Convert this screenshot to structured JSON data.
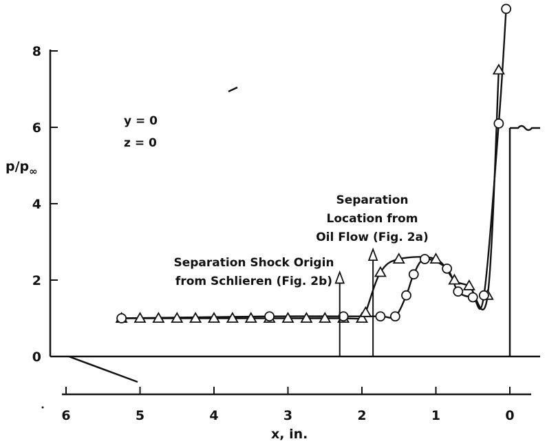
{
  "chart_data": {
    "type": "line",
    "xlabel": "x, in.",
    "ylabel": "p/p",
    "ylabel_sub": "∞",
    "xlim": [
      6,
      0
    ],
    "ylim": [
      0,
      9
    ],
    "x_ticks": [
      6,
      5,
      4,
      3,
      2,
      1,
      0
    ],
    "y_ticks": [
      0,
      2,
      4,
      6,
      8
    ],
    "x_tick_labels": [
      "6",
      "5",
      "4",
      "3",
      "2",
      "1",
      "0"
    ],
    "y_tick_labels": [
      "0",
      "2",
      "4",
      "6",
      "8"
    ],
    "conditions": [
      "y = 0",
      "z = 0"
    ],
    "series": [
      {
        "marker": "triangle",
        "points": [
          [
            5.25,
            1.0
          ],
          [
            5.0,
            1.0
          ],
          [
            4.75,
            1.0
          ],
          [
            4.5,
            1.0
          ],
          [
            4.25,
            1.0
          ],
          [
            4.0,
            1.0
          ],
          [
            3.75,
            1.0
          ],
          [
            3.5,
            1.0
          ],
          [
            3.25,
            1.0
          ],
          [
            3.0,
            1.0
          ],
          [
            2.75,
            1.0
          ],
          [
            2.5,
            1.0
          ],
          [
            2.25,
            1.0
          ],
          [
            2.0,
            1.0
          ],
          [
            1.95,
            1.15
          ],
          [
            1.75,
            2.2
          ],
          [
            1.5,
            2.55
          ],
          [
            1.0,
            2.55
          ],
          [
            0.75,
            2.0
          ],
          [
            0.55,
            1.85
          ],
          [
            0.3,
            1.6
          ],
          [
            0.15,
            7.5
          ]
        ]
      },
      {
        "marker": "circle",
        "points": [
          [
            5.25,
            1.0
          ],
          [
            3.25,
            1.05
          ],
          [
            2.25,
            1.05
          ],
          [
            1.75,
            1.05
          ],
          [
            1.55,
            1.05
          ],
          [
            1.4,
            1.6
          ],
          [
            1.3,
            2.15
          ],
          [
            1.15,
            2.55
          ],
          [
            0.85,
            2.3
          ],
          [
            0.7,
            1.7
          ],
          [
            0.5,
            1.55
          ],
          [
            0.35,
            1.6
          ],
          [
            0.15,
            6.1
          ],
          [
            0.05,
            9.1
          ]
        ]
      }
    ],
    "annotations": [
      {
        "lines": [
          "Separation Shock Origin",
          "from Schlieren (Fig. 2b)"
        ],
        "arrow_x": 2.3,
        "arrow_y_top": 2.1
      },
      {
        "lines": [
          "Separation",
          "Location from",
          "Oil Flow (Fig. 2a)"
        ],
        "arrow_x": 1.85,
        "arrow_y_top": 2.7
      }
    ]
  }
}
